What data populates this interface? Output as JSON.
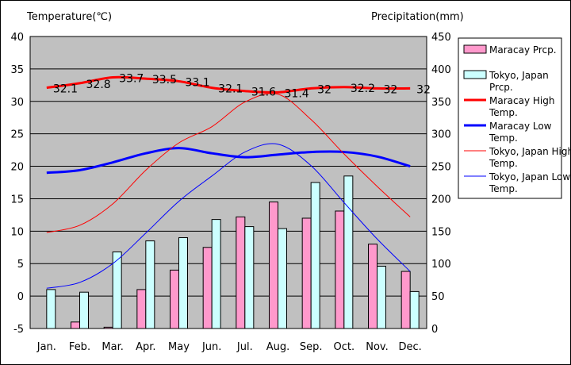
{
  "chart_data": {
    "type": "bar",
    "left_axis_title": "Temperature(℃)",
    "right_axis_title": "Precipitation(mm)",
    "categories": [
      "Jan.",
      "Feb.",
      "Mar.",
      "Apr.",
      "May",
      "Jun.",
      "Jul.",
      "Aug.",
      "Sep.",
      "Oct.",
      "Nov.",
      "Dec."
    ],
    "temperature_axis": {
      "min": -5,
      "max": 40,
      "ticks": [
        -5,
        0,
        5,
        10,
        15,
        20,
        25,
        30,
        35,
        40
      ]
    },
    "precipitation_axis": {
      "min": 0,
      "max": 450,
      "ticks": [
        0,
        50,
        100,
        150,
        200,
        250,
        300,
        350,
        400,
        450
      ]
    },
    "grid": true,
    "legend_position": "right",
    "bar_series": [
      {
        "name": "Maracay Prcp.",
        "color": "#ff99cc",
        "values": [
          0,
          10,
          2,
          60,
          90,
          125,
          172,
          195,
          170,
          181,
          130,
          88
        ]
      },
      {
        "name": "Tokyo, Japan Prcp.",
        "color": "#ccffff",
        "values": [
          60,
          56,
          118,
          135,
          140,
          168,
          157,
          154,
          225,
          235,
          96,
          57
        ]
      }
    ],
    "line_series": [
      {
        "name": "Maracay High Temp.",
        "color": "#ff0000",
        "width": 3,
        "values": [
          32.1,
          32.8,
          33.7,
          33.5,
          33.1,
          32.1,
          31.6,
          31.4,
          32,
          32.2,
          32,
          32
        ],
        "labels": [
          "32.1",
          "32.8",
          "33.7",
          "33.5",
          "33.1",
          "32.1",
          "31.6",
          "31.4",
          "32",
          "32.2",
          "32",
          "32"
        ]
      },
      {
        "name": "Maracay Low Temp.",
        "color": "#0000ff",
        "width": 3,
        "values": [
          19.0,
          19.4,
          20.6,
          22.0,
          22.8,
          22.0,
          21.4,
          21.8,
          22.2,
          22.2,
          21.5,
          20.0
        ]
      },
      {
        "name": "Tokyo, Japan High Temp.",
        "color": "#ff0000",
        "width": 1,
        "values": [
          9.8,
          10.9,
          14.2,
          19.4,
          23.6,
          26.1,
          29.9,
          31.1,
          27.2,
          21.9,
          16.9,
          12.2
        ]
      },
      {
        "name": "Tokyo, Japan Low Temp.",
        "color": "#0000ff",
        "width": 1,
        "values": [
          1.2,
          2.1,
          5.0,
          9.7,
          14.6,
          18.5,
          22.2,
          23.4,
          20.1,
          14.4,
          8.8,
          3.8
        ]
      }
    ],
    "legend": [
      {
        "kind": "bar",
        "series": 0,
        "label": "Maracay Prcp."
      },
      {
        "kind": "bar",
        "series": 1,
        "label": "Tokyo, Japan Prcp."
      },
      {
        "kind": "line",
        "series": 0,
        "label": "Maracay High Temp."
      },
      {
        "kind": "line",
        "series": 1,
        "label": "Maracay Low Temp."
      },
      {
        "kind": "line",
        "series": 2,
        "label": "Tokyo, Japan High Temp."
      },
      {
        "kind": "line",
        "series": 3,
        "label": "Tokyo, Japan Low Temp."
      }
    ]
  }
}
